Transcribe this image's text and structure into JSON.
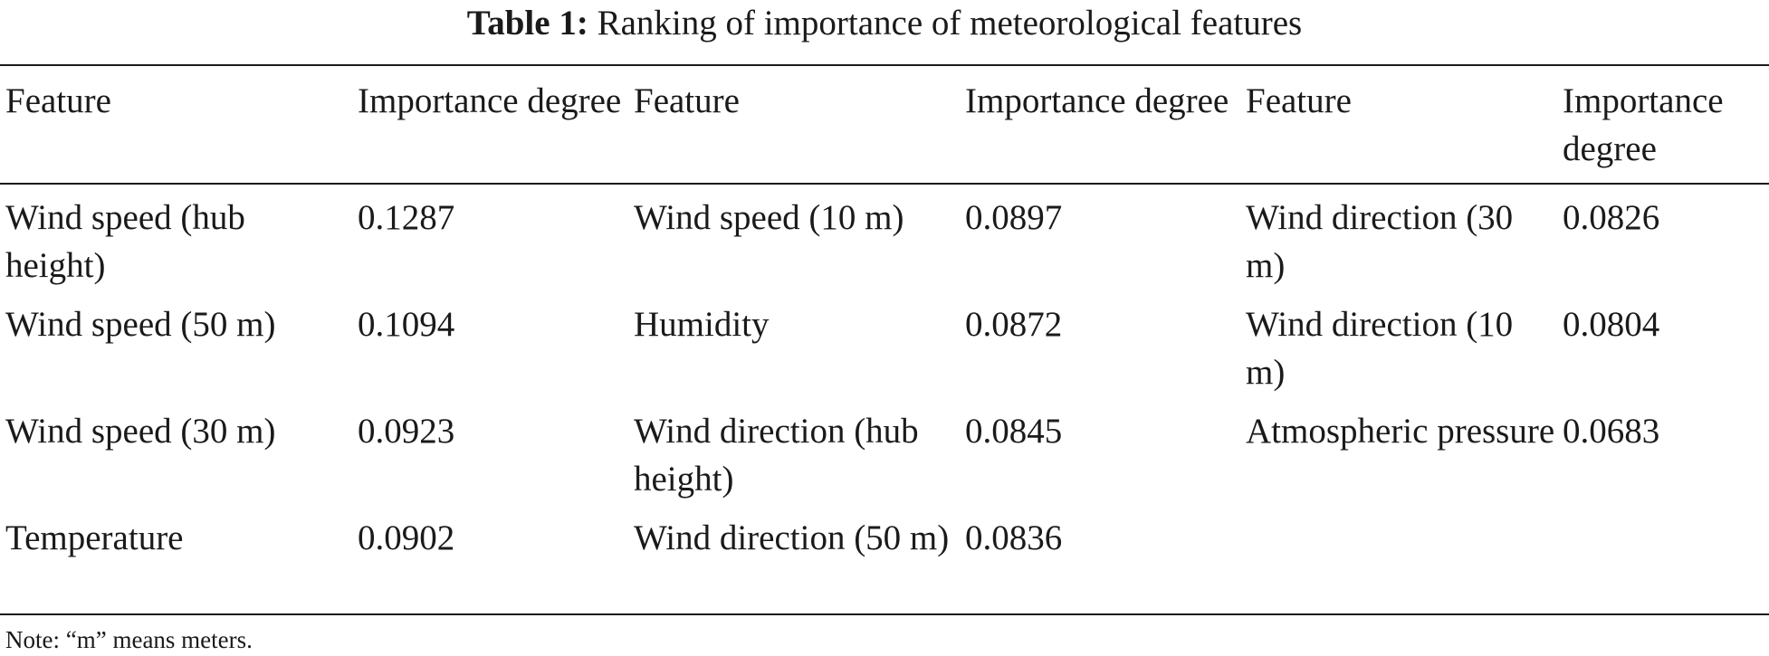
{
  "caption": {
    "label": "Table 1:",
    "title": "Ranking of importance of meteorological features"
  },
  "table": {
    "headers": [
      "Feature",
      "Importance degree",
      "Feature",
      "Importance degree",
      "Feature",
      "Importance degree"
    ],
    "rows": [
      [
        "Wind speed (hub height)",
        "0.1287",
        "Wind speed (10 m)",
        "0.0897",
        "Wind direction (30 m)",
        "0.0826"
      ],
      [
        "Wind speed (50 m)",
        "0.1094",
        "Humidity",
        "0.0872",
        "Wind direction (10 m)",
        "0.0804"
      ],
      [
        "Wind speed (30 m)",
        "0.0923",
        "Wind direction (hub height)",
        "0.0845",
        "Atmospheric pressure",
        "0.0683"
      ],
      [
        "Temperature",
        "0.0902",
        "Wind direction (50 m)",
        "0.0836",
        "",
        ""
      ]
    ]
  },
  "note": "Note: “m” means meters."
}
